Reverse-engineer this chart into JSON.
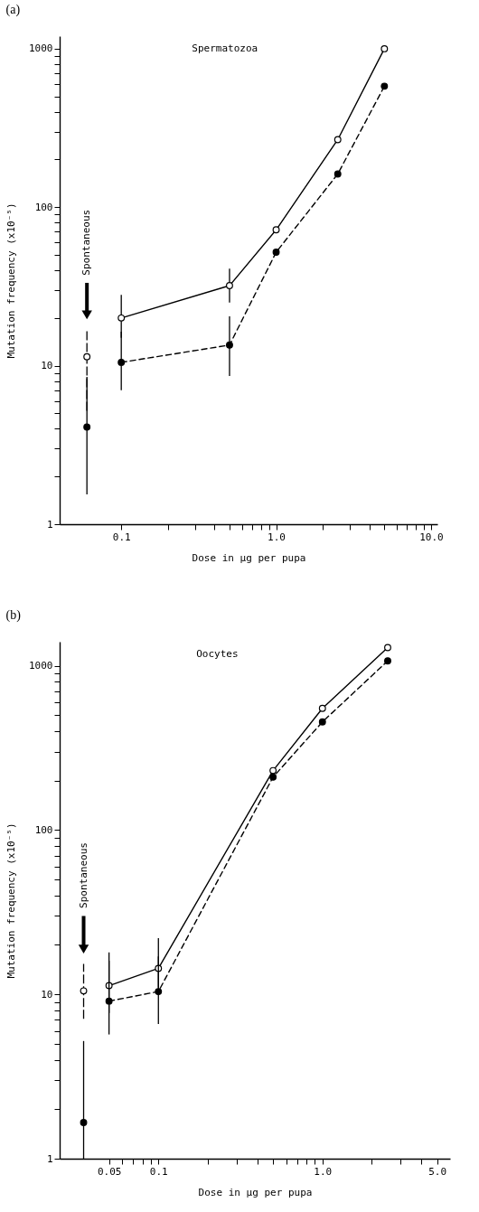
{
  "chart_data": [
    {
      "type": "line",
      "title": "(a)",
      "xlabel": "Dose in μg per pupa",
      "ylabel": "Mutation frequency (x10⁻⁵)",
      "log": "xy",
      "grid": false,
      "marker": "circle",
      "xlim": [
        0.04,
        11
      ],
      "xticks": [
        {
          "value": 0.1,
          "label": "0.1"
        },
        {
          "value": 0.2,
          "label": null
        },
        {
          "value": 0.3,
          "label": null
        },
        {
          "value": 0.4,
          "label": null
        },
        {
          "value": 0.5,
          "label": null
        },
        {
          "value": 0.6,
          "label": null
        },
        {
          "value": 0.7,
          "label": null
        },
        {
          "value": 0.8,
          "label": null
        },
        {
          "value": 0.9,
          "label": null
        },
        {
          "value": 1,
          "label": "1.0"
        },
        {
          "value": 2,
          "label": null
        },
        {
          "value": 3,
          "label": null
        },
        {
          "value": 4,
          "label": null
        },
        {
          "value": 5,
          "label": null
        },
        {
          "value": 6,
          "label": null
        },
        {
          "value": 7,
          "label": null
        },
        {
          "value": 8,
          "label": null
        },
        {
          "value": 9,
          "label": null
        },
        {
          "value": 10,
          "label": "10.0"
        }
      ],
      "ylim": [
        1,
        1200
      ],
      "yticks": [
        1,
        {
          "value": 2,
          "label": null
        },
        {
          "value": 3,
          "label": null
        },
        {
          "value": 4,
          "label": null
        },
        {
          "value": 5,
          "label": null
        },
        {
          "value": 6,
          "label": null
        },
        {
          "value": 7,
          "label": null
        },
        {
          "value": 8,
          "label": null
        },
        {
          "value": 9,
          "label": null
        },
        10,
        {
          "value": 20,
          "label": null
        },
        {
          "value": 30,
          "label": null
        },
        {
          "value": 40,
          "label": null
        },
        {
          "value": 50,
          "label": null
        },
        {
          "value": 60,
          "label": null
        },
        {
          "value": 70,
          "label": null
        },
        {
          "value": 80,
          "label": null
        },
        {
          "value": 90,
          "label": null
        },
        100,
        {
          "value": 200,
          "label": null
        },
        {
          "value": 300,
          "label": null
        },
        {
          "value": 400,
          "label": null
        },
        {
          "value": 500,
          "label": null
        },
        {
          "value": 600,
          "label": null
        },
        {
          "value": 700,
          "label": null
        },
        {
          "value": 800,
          "label": null
        },
        {
          "value": 900,
          "label": null
        },
        1000
      ],
      "series": [
        {
          "type": "line",
          "color": "#000000",
          "line_style": "solid",
          "x": [
            0.1,
            0.5,
            1,
            2.5,
            5
          ],
          "values": [
            20,
            32,
            72,
            267,
            1000
          ],
          "errors": [
            [
              15,
              28
            ],
            [
              25,
              41
            ],
            null,
            null,
            null
          ]
        },
        {
          "type": "line",
          "color": "#000000",
          "line_style": "dashed",
          "x": [
            0.1,
            0.5,
            1,
            2.5,
            5
          ],
          "values": [
            10.5,
            13.5,
            52,
            162,
            580
          ],
          "errors": [
            [
              7,
              16.4
            ],
            [
              8.6,
              20.5
            ],
            null,
            null,
            null
          ]
        },
        {
          "type": "scatter",
          "color": "#000000",
          "line_style": "solid",
          "x": [
            0.06
          ],
          "values": [
            11.4
          ],
          "errors": [
            [
              5.2,
              17
            ]
          ]
        },
        {
          "type": "scatter",
          "color": "#000000",
          "line_style": "dashed",
          "x": [
            0.06
          ],
          "values": [
            4.1
          ],
          "errors": [
            [
              1.54,
              8.5
            ]
          ]
        }
      ],
      "annotations": [
        "Spermatozoa",
        "Spontaneous"
      ]
    },
    {
      "type": "line",
      "title": "(b)",
      "xlabel": "Dose in μg per pupa",
      "ylabel": "Mutation frequency (x10⁻⁵)",
      "log": "xy",
      "grid": false,
      "marker": "circle",
      "xlim": [
        0.025,
        6
      ],
      "xticks": [
        {
          "value": 0.05,
          "label": "0.05"
        },
        {
          "value": 0.06,
          "label": null
        },
        {
          "value": 0.07,
          "label": null
        },
        {
          "value": 0.08,
          "label": null
        },
        {
          "value": 0.09,
          "label": null
        },
        {
          "value": 0.1,
          "label": "0.1"
        },
        {
          "value": 0.2,
          "label": null
        },
        {
          "value": 0.3,
          "label": null
        },
        {
          "value": 0.4,
          "label": null
        },
        {
          "value": 0.5,
          "label": null
        },
        {
          "value": 0.6,
          "label": null
        },
        {
          "value": 0.7,
          "label": null
        },
        {
          "value": 0.8,
          "label": null
        },
        {
          "value": 0.9,
          "label": null
        },
        {
          "value": 1,
          "label": "1.0"
        },
        {
          "value": 2,
          "label": null
        },
        {
          "value": 3,
          "label": null
        },
        {
          "value": 4,
          "label": null
        },
        {
          "value": 5,
          "label": "5.0"
        }
      ],
      "ylim": [
        1,
        1400
      ],
      "yticks": [
        1,
        {
          "value": 2,
          "label": null
        },
        {
          "value": 3,
          "label": null
        },
        {
          "value": 4,
          "label": null
        },
        {
          "value": 5,
          "label": null
        },
        {
          "value": 6,
          "label": null
        },
        {
          "value": 7,
          "label": null
        },
        {
          "value": 8,
          "label": null
        },
        {
          "value": 9,
          "label": null
        },
        10,
        {
          "value": 20,
          "label": null
        },
        {
          "value": 30,
          "label": null
        },
        {
          "value": 40,
          "label": null
        },
        {
          "value": 50,
          "label": null
        },
        {
          "value": 60,
          "label": null
        },
        {
          "value": 70,
          "label": null
        },
        {
          "value": 80,
          "label": null
        },
        {
          "value": 90,
          "label": null
        },
        100,
        {
          "value": 200,
          "label": null
        },
        {
          "value": 300,
          "label": null
        },
        {
          "value": 400,
          "label": null
        },
        {
          "value": 500,
          "label": null
        },
        {
          "value": 600,
          "label": null
        },
        {
          "value": 700,
          "label": null
        },
        {
          "value": 800,
          "label": null
        },
        {
          "value": 900,
          "label": null
        },
        1000
      ],
      "series": [
        {
          "type": "line",
          "color": "#000000",
          "line_style": "solid",
          "x": [
            0.05,
            0.1,
            0.5,
            1,
            2.5
          ],
          "values": [
            11.3,
            14.4,
            230,
            550,
            1290
          ],
          "errors": [
            [
              7.7,
              18
            ],
            [
              11,
              22
            ],
            null,
            null,
            null
          ]
        },
        {
          "type": "line",
          "color": "#000000",
          "line_style": "dashed",
          "x": [
            0.05,
            0.1,
            0.5,
            1,
            2.5
          ],
          "values": [
            9.1,
            10.4,
            210,
            455,
            1070
          ],
          "errors": [
            [
              5.7,
              16
            ],
            [
              6.6,
              17
            ],
            null,
            null,
            null
          ]
        },
        {
          "type": "scatter",
          "color": "#000000",
          "line_style": "solid",
          "x": [
            0.035
          ],
          "values": [
            10.5
          ],
          "errors": [
            [
              7.1,
              15.3
            ]
          ]
        },
        {
          "type": "scatter",
          "color": "#000000",
          "line_style": "dashed",
          "x": [
            0.035
          ],
          "values": [
            1.66
          ],
          "errors": [
            [
              1,
              5.2
            ]
          ]
        }
      ],
      "annotations": [
        "Oocytes",
        "Spontaneous"
      ]
    }
  ]
}
